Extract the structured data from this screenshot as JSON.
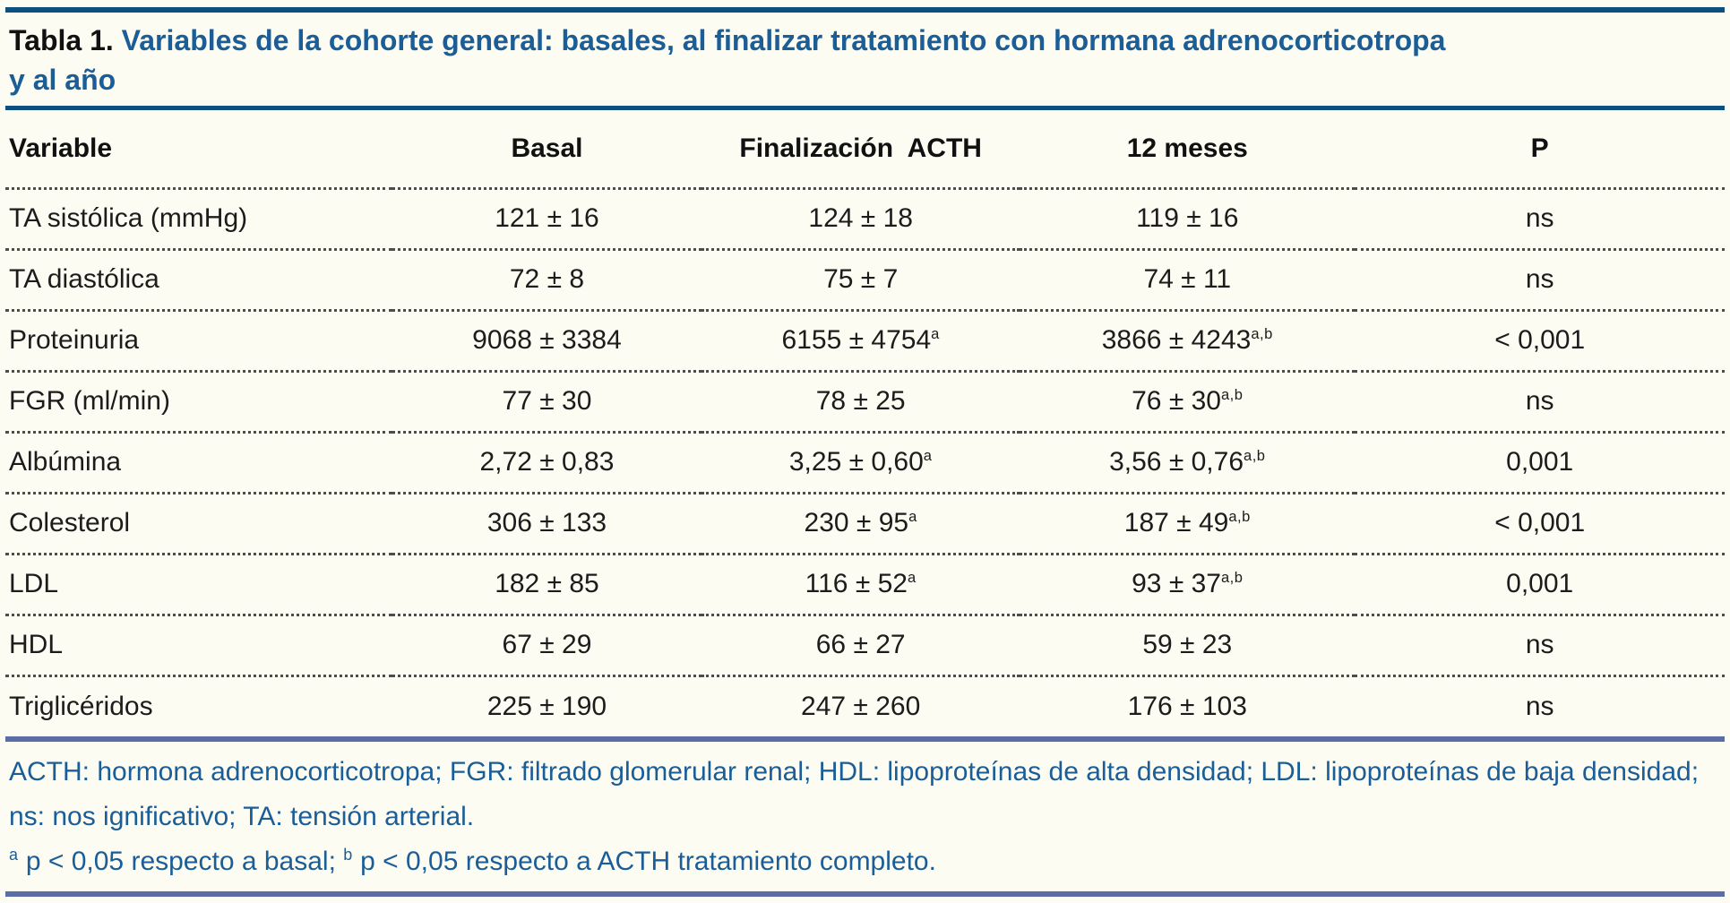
{
  "table": {
    "label": "Tabla 1.",
    "title_line1": "Variables de la cohorte general: basales, al finalizar tratamiento con hormana adrenocorticotropa",
    "title_line2": "y al año",
    "columns": [
      "Variable",
      "Basal",
      "Finalización  ACTH",
      "12 meses",
      "P"
    ],
    "rows": [
      {
        "variable": "TA sistólica (mmHg)",
        "values": [
          {
            "text": "121 ± 16",
            "sup": ""
          },
          {
            "text": "124 ± 18",
            "sup": ""
          },
          {
            "text": "119 ± 16",
            "sup": ""
          }
        ],
        "p": "ns"
      },
      {
        "variable": "TA diastólica",
        "values": [
          {
            "text": "72 ± 8",
            "sup": ""
          },
          {
            "text": "75 ± 7",
            "sup": ""
          },
          {
            "text": "74 ± 11",
            "sup": ""
          }
        ],
        "p": "ns"
      },
      {
        "variable": "Proteinuria",
        "values": [
          {
            "text": "9068 ± 3384",
            "sup": ""
          },
          {
            "text": "6155 ± 4754",
            "sup": "a"
          },
          {
            "text": "3866 ± 4243",
            "sup": "a,b"
          }
        ],
        "p": "< 0,001"
      },
      {
        "variable": "FGR (ml/min)",
        "values": [
          {
            "text": "77 ± 30",
            "sup": ""
          },
          {
            "text": "78 ± 25",
            "sup": ""
          },
          {
            "text": "76 ± 30",
            "sup": "a,b"
          }
        ],
        "p": "ns"
      },
      {
        "variable": "Albúmina",
        "values": [
          {
            "text": "2,72 ± 0,83",
            "sup": ""
          },
          {
            "text": "3,25 ± 0,60",
            "sup": "a"
          },
          {
            "text": "3,56 ± 0,76",
            "sup": "a,b"
          }
        ],
        "p": "0,001"
      },
      {
        "variable": "Colesterol",
        "values": [
          {
            "text": "306 ± 133",
            "sup": ""
          },
          {
            "text": "230 ± 95",
            "sup": "a"
          },
          {
            "text": "187 ± 49",
            "sup": "a,b"
          }
        ],
        "p": "< 0,001"
      },
      {
        "variable": "LDL",
        "values": [
          {
            "text": "182 ± 85",
            "sup": ""
          },
          {
            "text": "116 ± 52",
            "sup": "a"
          },
          {
            "text": "93 ± 37",
            "sup": "a,b"
          }
        ],
        "p": "0,001"
      },
      {
        "variable": "HDL",
        "values": [
          {
            "text": "67 ± 29",
            "sup": ""
          },
          {
            "text": "66 ± 27",
            "sup": ""
          },
          {
            "text": "59 ± 23",
            "sup": ""
          }
        ],
        "p": "ns"
      },
      {
        "variable": "Triglicéridos",
        "values": [
          {
            "text": "225 ± 190",
            "sup": ""
          },
          {
            "text": "247 ± 260",
            "sup": ""
          },
          {
            "text": "176 ± 103",
            "sup": ""
          }
        ],
        "p": "ns"
      }
    ],
    "abbreviation_note": "ACTH: hormona adrenocorticotropa; FGR: filtrado glomerular renal; HDL: lipoproteínas de alta densidad; LDL: lipoproteínas de baja densidad; ns: nos ignificativo; TA: tensión arterial.",
    "footnote": {
      "sup_a": "a",
      "text_a": " p < 0,05 respecto a basal; ",
      "sup_b": "b",
      "text_b": " p < 0,05 respecto a ACTH tratamiento completo."
    },
    "colors": {
      "accent_blue": "#0d5080",
      "text_blue": "#1b5d97",
      "slate_blue": "#5c6da6",
      "dotted_separator": "#4d4d4d",
      "background": "#fcfcf2"
    }
  }
}
